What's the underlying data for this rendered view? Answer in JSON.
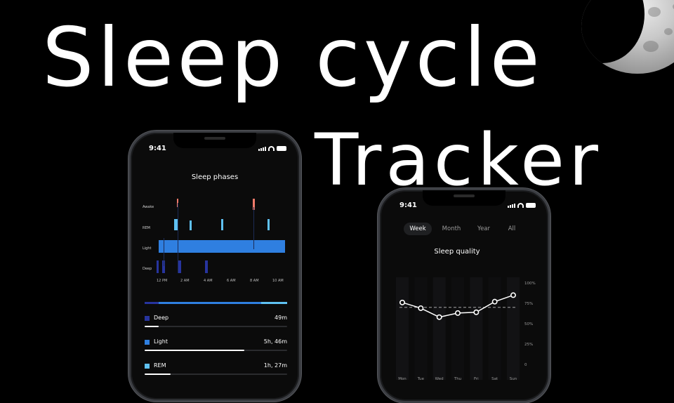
{
  "hero": {
    "line1": "Sleep cycle",
    "line2": "Tracker"
  },
  "status": {
    "time": "9:41"
  },
  "phases": {
    "title": "Sleep phases",
    "y_labels": [
      "Awake",
      "REM",
      "Light",
      "Deep"
    ],
    "x_labels": [
      "12 PM",
      "2 AM",
      "4 AM",
      "6 AM",
      "8 AM",
      "10 AM"
    ],
    "colors": {
      "awake": "#f07a6a",
      "rem": "#5fc1f2",
      "light": "#2f7fe0",
      "deep": "#27349e"
    },
    "legend": [
      {
        "name": "Deep",
        "value": "49m",
        "color": "#27349e",
        "fraction": 0.1
      },
      {
        "name": "Light",
        "value": "5h, 46m",
        "color": "#2f7fe0",
        "fraction": 0.7
      },
      {
        "name": "REM",
        "value": "1h, 27m",
        "color": "#5fc1f2",
        "fraction": 0.18
      }
    ],
    "hypnogram_split": [
      {
        "color": "#27349e",
        "fraction": 0.1
      },
      {
        "color": "#2f7fe0",
        "fraction": 0.72
      },
      {
        "color": "#5fc1f2",
        "fraction": 0.18
      }
    ]
  },
  "quality": {
    "tabs": [
      "Week",
      "Month",
      "Year",
      "All"
    ],
    "active_tab": "Week",
    "title": "Sleep quality",
    "y_labels": [
      "100%",
      "75%",
      "50%",
      "25%",
      "0"
    ],
    "x_labels": [
      "Mon",
      "Tue",
      "Wed",
      "Thu",
      "Fri",
      "Sat",
      "Sun"
    ]
  },
  "chart_data": {
    "type": "line",
    "x": [
      "Mon",
      "Tue",
      "Wed",
      "Thu",
      "Fri",
      "Sat",
      "Sun"
    ],
    "series": [
      {
        "values": [
          76,
          69,
          58,
          63,
          64,
          77,
          85
        ]
      }
    ],
    "ylim": [
      0,
      100
    ],
    "reference_line": 70,
    "grid": false
  }
}
